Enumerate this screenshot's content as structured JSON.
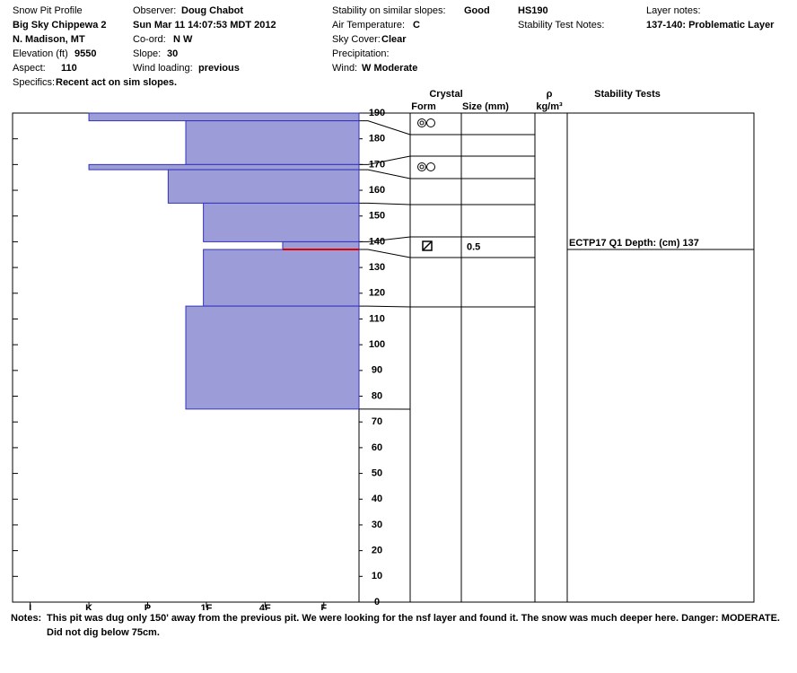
{
  "header": {
    "title": "Snow Pit Profile",
    "location": "Big Sky Chippewa 2",
    "region": "N. Madison, MT",
    "elevation": {
      "label": "Elevation (ft)",
      "value": 9550
    },
    "aspect": {
      "label": "Aspect:",
      "value": 110
    },
    "specifics": {
      "label": "Specifics:",
      "value": "Recent act on sim slopes."
    },
    "observer": {
      "label": "Observer:",
      "value": "Doug Chabot"
    },
    "date": "Sun Mar 11 14:07:53 MDT 2012",
    "coord": {
      "label": "Co-ord:",
      "value": "N  W"
    },
    "slope": {
      "label": "Slope:",
      "value": 30
    },
    "wind_loading": {
      "label": "Wind loading:",
      "value": "previous"
    },
    "stability": {
      "label": "Stability on similar slopes:",
      "value": "Good"
    },
    "air_temp": {
      "label": "Air Temperature:",
      "value": "C"
    },
    "sky": {
      "label": "Sky Cover:",
      "value": "Clear"
    },
    "precip": {
      "label": "Precipitation:"
    },
    "wind": {
      "label": "Wind:",
      "value": "W Moderate"
    },
    "hs": "HS190",
    "stability_notes_label": "Stability Test Notes:",
    "layer_notes_label": "Layer notes:",
    "layer_note": "137-140: Problematic Layer"
  },
  "chart_data": {
    "type": "bar",
    "color": "#9c9cd8",
    "edge_color": "#3333bb",
    "ylim": [
      0,
      190
    ],
    "yticks": [
      0,
      10,
      20,
      30,
      40,
      50,
      60,
      70,
      80,
      90,
      100,
      110,
      120,
      130,
      140,
      150,
      160,
      170,
      180,
      190
    ],
    "xlim": [
      6.3,
      0.4
    ],
    "xticks": [
      {
        "value": 6,
        "label": "I"
      },
      {
        "value": 5,
        "label": "K"
      },
      {
        "value": 4,
        "label": "P"
      },
      {
        "value": 3,
        "label": "1F"
      },
      {
        "value": 2,
        "label": "4F"
      },
      {
        "value": 1,
        "label": "F"
      }
    ],
    "layers": [
      {
        "top": 190,
        "bottom": 187,
        "hardness": 5
      },
      {
        "top": 187,
        "bottom": 170,
        "hardness": 3.35
      },
      {
        "top": 170,
        "bottom": 168,
        "hardness": 5
      },
      {
        "top": 168,
        "bottom": 155,
        "hardness": 3.65
      },
      {
        "top": 155,
        "bottom": 140,
        "hardness": 3.05
      },
      {
        "top": 140,
        "bottom": 137,
        "hardness": 1.7,
        "size": 0.5
      },
      {
        "top": 137,
        "bottom": 115,
        "hardness": 3.05
      },
      {
        "top": 115,
        "bottom": 75,
        "hardness": 3.35
      }
    ],
    "columns": {
      "crystal": "Crystal",
      "form": "Form",
      "size": "Size (mm)",
      "rho": "ρ",
      "density_unit": "kg/m³",
      "tests": "Stability Tests"
    },
    "stability_tests": [
      {
        "test": "ECTP17 Q1",
        "depth_label": "Depth: (cm)",
        "depth": 137,
        "color": "#dd0000"
      }
    ],
    "notes": {
      "label": "Notes:",
      "text": "This pit was dug only 150' away from the previous pit.  We were looking for the nsf layer and found it.  The snow was much deeper here. Danger: MODERATE. Did not dig below 75cm."
    }
  }
}
